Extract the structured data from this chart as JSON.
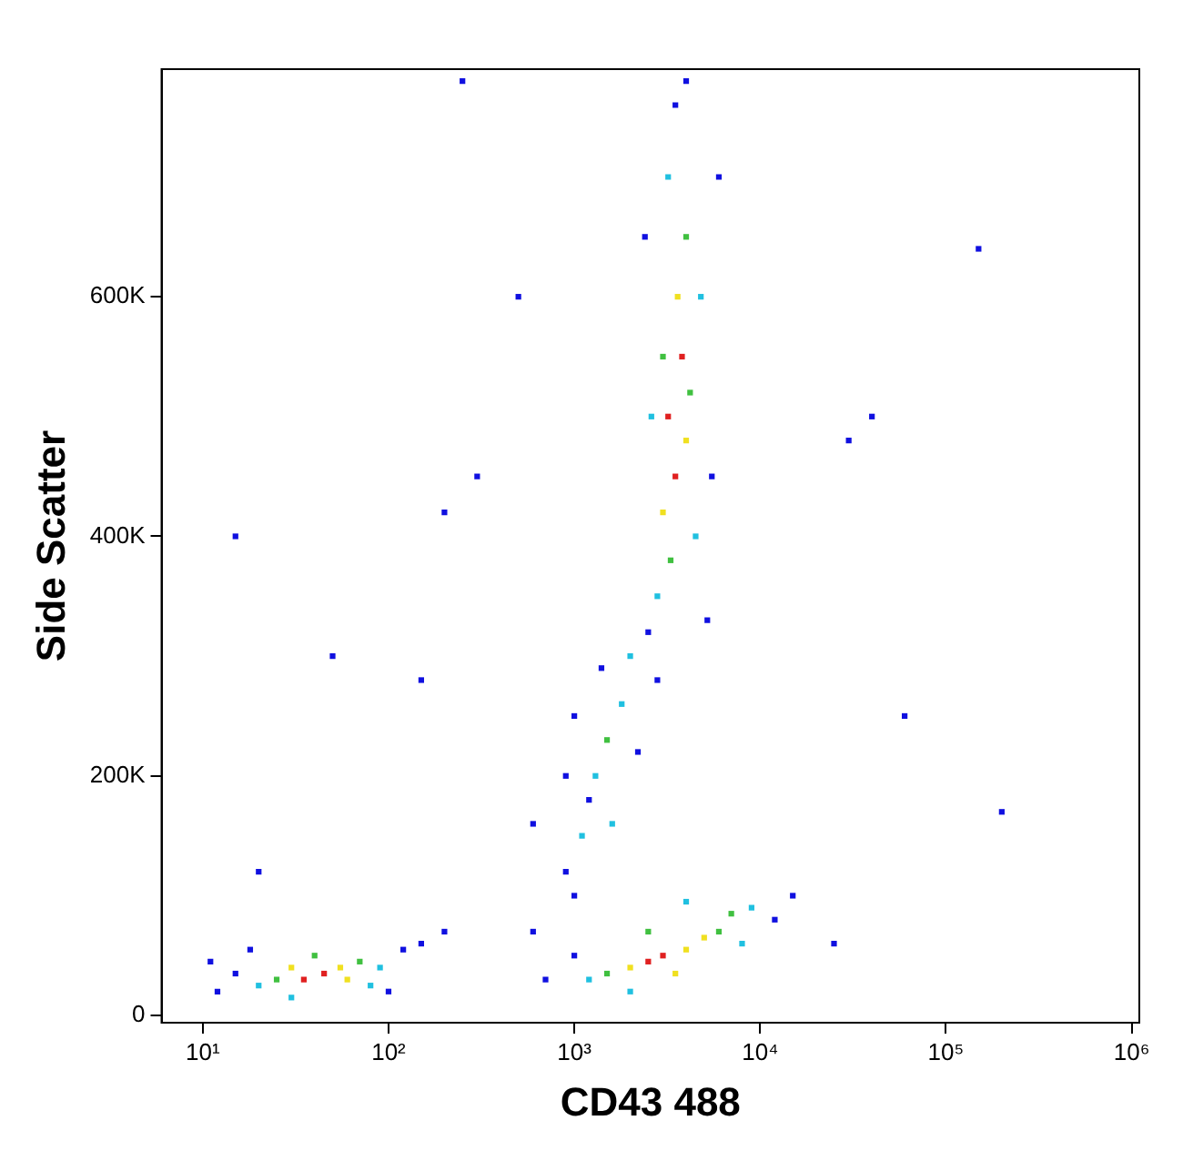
{
  "chart_data": {
    "type": "scatter",
    "xlabel": "CD43 488",
    "ylabel": "Side Scatter",
    "log": "x",
    "grid": false,
    "legend": false,
    "marker": "square",
    "xlim": [
      6,
      1100000
    ],
    "ylim": [
      -6000,
      790000
    ],
    "xticks": [
      {
        "value": 10,
        "label": "10¹"
      },
      {
        "value": 100,
        "label": "10²"
      },
      {
        "value": 1000,
        "label": "10³"
      },
      {
        "value": 10000,
        "label": "10⁴"
      },
      {
        "value": 100000,
        "label": "10⁵"
      },
      {
        "value": 1000000,
        "label": "10⁶"
      }
    ],
    "yticks": [
      {
        "value": 0,
        "label": "0"
      },
      {
        "value": 200000,
        "label": "200K"
      },
      {
        "value": 400000,
        "label": "400K"
      },
      {
        "value": 600000,
        "label": "600K"
      }
    ],
    "series": [
      {
        "x": [
          45,
          35,
          55,
          30,
          60,
          25,
          70,
          40,
          20,
          90,
          80,
          15,
          12,
          120,
          150,
          100,
          18,
          200,
          11,
          30,
          3000,
          2500,
          4000,
          2000,
          5000,
          3500,
          6000,
          1500,
          7000,
          2500,
          8000,
          1200,
          9000,
          1000,
          700,
          12000,
          15000,
          600,
          4000,
          2000,
          900,
          1100,
          1000,
          1500,
          1300,
          1800,
          1200,
          2000,
          1000,
          1600,
          2200,
          900,
          1400,
          3500,
          3200,
          3800,
          3000,
          4000,
          3600,
          3300,
          4200,
          3000,
          4000,
          2800,
          4500,
          3200,
          4800,
          2600,
          2500,
          5500,
          3500,
          2400,
          6000,
          4000,
          2800,
          5200,
          300,
          200,
          50,
          15,
          500,
          150000,
          30000,
          60000,
          200000,
          25000,
          40000,
          250,
          20,
          150,
          600
        ],
        "values": [
          35000,
          30000,
          40000,
          40000,
          30000,
          30000,
          45000,
          50000,
          25000,
          40000,
          25000,
          35000,
          20000,
          55000,
          60000,
          20000,
          55000,
          70000,
          45000,
          15000,
          50000,
          45000,
          55000,
          40000,
          65000,
          35000,
          70000,
          35000,
          85000,
          70000,
          60000,
          30000,
          90000,
          50000,
          30000,
          80000,
          100000,
          70000,
          95000,
          20000,
          120000,
          150000,
          100000,
          230000,
          200000,
          260000,
          180000,
          300000,
          250000,
          160000,
          220000,
          200000,
          290000,
          450000,
          500000,
          550000,
          420000,
          480000,
          600000,
          380000,
          520000,
          550000,
          650000,
          350000,
          400000,
          700000,
          600000,
          500000,
          320000,
          450000,
          760000,
          650000,
          700000,
          780000,
          280000,
          330000,
          450000,
          420000,
          300000,
          400000,
          600000,
          640000,
          480000,
          250000,
          170000,
          60000,
          500000,
          780000,
          120000,
          280000,
          160000
        ],
        "colors": [
          "#e02020",
          "#e02020",
          "#f0e020",
          "#f0e020",
          "#f0e020",
          "#40c040",
          "#40c040",
          "#40c040",
          "#20c0e0",
          "#20c0e0",
          "#20c0e0",
          "#1010e0",
          "#1010e0",
          "#1010e0",
          "#1010e0",
          "#1010e0",
          "#1010e0",
          "#1010e0",
          "#1010e0",
          "#20c0e0",
          "#e02020",
          "#e02020",
          "#f0e020",
          "#f0e020",
          "#f0e020",
          "#f0e020",
          "#40c040",
          "#40c040",
          "#40c040",
          "#40c040",
          "#20c0e0",
          "#20c0e0",
          "#20c0e0",
          "#1010e0",
          "#1010e0",
          "#1010e0",
          "#1010e0",
          "#1010e0",
          "#20c0e0",
          "#20c0e0",
          "#1010e0",
          "#20c0e0",
          "#1010e0",
          "#40c040",
          "#20c0e0",
          "#20c0e0",
          "#1010e0",
          "#20c0e0",
          "#1010e0",
          "#20c0e0",
          "#1010e0",
          "#1010e0",
          "#1010e0",
          "#e02020",
          "#e02020",
          "#e02020",
          "#f0e020",
          "#f0e020",
          "#f0e020",
          "#40c040",
          "#40c040",
          "#40c040",
          "#40c040",
          "#20c0e0",
          "#20c0e0",
          "#20c0e0",
          "#20c0e0",
          "#20c0e0",
          "#1010e0",
          "#1010e0",
          "#1010e0",
          "#1010e0",
          "#1010e0",
          "#1010e0",
          "#1010e0",
          "#1010e0",
          "#1010e0",
          "#1010e0",
          "#1010e0",
          "#1010e0",
          "#1010e0",
          "#1010e0",
          "#1010e0",
          "#1010e0",
          "#1010e0",
          "#1010e0",
          "#1010e0",
          "#1010e0",
          "#1010e0",
          "#1010e0",
          "#1010e0"
        ]
      }
    ]
  }
}
